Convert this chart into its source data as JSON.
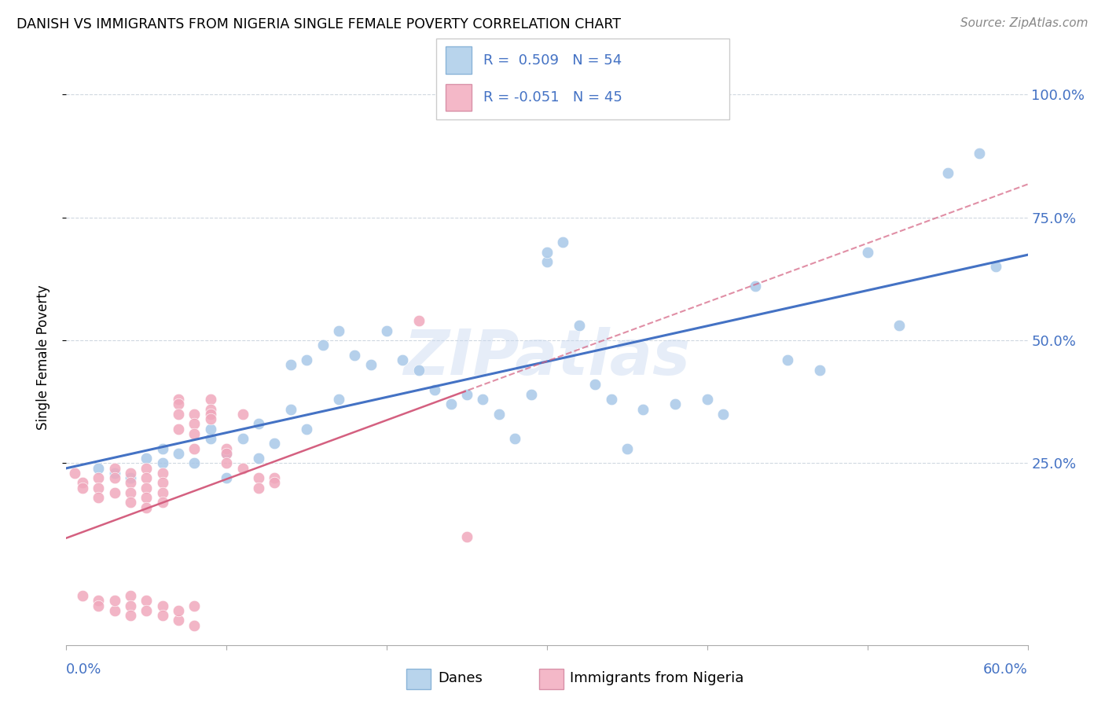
{
  "title": "DANISH VS IMMIGRANTS FROM NIGERIA SINGLE FEMALE POVERTY CORRELATION CHART",
  "source": "Source: ZipAtlas.com",
  "ylabel": "Single Female Poverty",
  "watermark": "ZIPatlas",
  "xlim": [
    0.0,
    0.6
  ],
  "ylim": [
    -0.12,
    1.05
  ],
  "ytick_vals": [
    0.25,
    0.5,
    0.75,
    1.0
  ],
  "ytick_labels": [
    "25.0%",
    "50.0%",
    "75.0%",
    "100.0%"
  ],
  "danes_color": "#a8c8e8",
  "danes_line_color": "#4472c4",
  "nigeria_color": "#f0a8bc",
  "nigeria_line_color": "#d46080",
  "legend_box_danes": "#b8d4ec",
  "legend_box_nigeria": "#f4b8c8",
  "danes_points_x": [
    0.02,
    0.03,
    0.04,
    0.05,
    0.06,
    0.06,
    0.07,
    0.08,
    0.09,
    0.09,
    0.1,
    0.1,
    0.11,
    0.12,
    0.12,
    0.13,
    0.14,
    0.14,
    0.15,
    0.15,
    0.16,
    0.17,
    0.17,
    0.18,
    0.19,
    0.2,
    0.21,
    0.22,
    0.23,
    0.24,
    0.25,
    0.26,
    0.27,
    0.28,
    0.29,
    0.3,
    0.3,
    0.31,
    0.32,
    0.33,
    0.34,
    0.35,
    0.36,
    0.38,
    0.4,
    0.41,
    0.43,
    0.45,
    0.47,
    0.5,
    0.52,
    0.55,
    0.57,
    0.58
  ],
  "danes_points_y": [
    0.24,
    0.23,
    0.22,
    0.26,
    0.25,
    0.28,
    0.27,
    0.25,
    0.3,
    0.32,
    0.22,
    0.27,
    0.3,
    0.26,
    0.33,
    0.29,
    0.36,
    0.45,
    0.32,
    0.46,
    0.49,
    0.38,
    0.52,
    0.47,
    0.45,
    0.52,
    0.46,
    0.44,
    0.4,
    0.37,
    0.39,
    0.38,
    0.35,
    0.3,
    0.39,
    0.66,
    0.68,
    0.7,
    0.53,
    0.41,
    0.38,
    0.28,
    0.36,
    0.37,
    0.38,
    0.35,
    0.61,
    0.46,
    0.44,
    0.68,
    0.53,
    0.84,
    0.88,
    0.65
  ],
  "nigeria_points_x": [
    0.005,
    0.01,
    0.01,
    0.02,
    0.02,
    0.02,
    0.03,
    0.03,
    0.03,
    0.04,
    0.04,
    0.04,
    0.04,
    0.05,
    0.05,
    0.05,
    0.05,
    0.05,
    0.06,
    0.06,
    0.06,
    0.06,
    0.07,
    0.07,
    0.07,
    0.07,
    0.08,
    0.08,
    0.08,
    0.08,
    0.09,
    0.09,
    0.09,
    0.09,
    0.1,
    0.1,
    0.1,
    0.11,
    0.11,
    0.12,
    0.12,
    0.13,
    0.13,
    0.22,
    0.25
  ],
  "nigeria_points_y": [
    0.23,
    0.21,
    0.2,
    0.22,
    0.2,
    0.18,
    0.24,
    0.22,
    0.19,
    0.23,
    0.21,
    0.19,
    0.17,
    0.24,
    0.22,
    0.2,
    0.18,
    0.16,
    0.23,
    0.21,
    0.19,
    0.17,
    0.38,
    0.37,
    0.35,
    0.32,
    0.35,
    0.33,
    0.31,
    0.28,
    0.38,
    0.36,
    0.35,
    0.34,
    0.28,
    0.27,
    0.25,
    0.35,
    0.24,
    0.22,
    0.2,
    0.22,
    0.21,
    0.54,
    0.1
  ],
  "nigeria_points_y_below": [
    -0.02,
    -0.03,
    -0.04,
    -0.05,
    -0.03,
    -0.02,
    -0.04,
    -0.06,
    -0.03,
    -0.05,
    -0.04,
    -0.06,
    -0.07,
    -0.05,
    -0.04,
    -0.08
  ],
  "nigeria_points_x_below": [
    0.01,
    0.02,
    0.02,
    0.03,
    0.03,
    0.04,
    0.04,
    0.04,
    0.05,
    0.05,
    0.06,
    0.06,
    0.07,
    0.07,
    0.08,
    0.08
  ],
  "background_color": "#ffffff",
  "grid_color": "#d0d8e0"
}
